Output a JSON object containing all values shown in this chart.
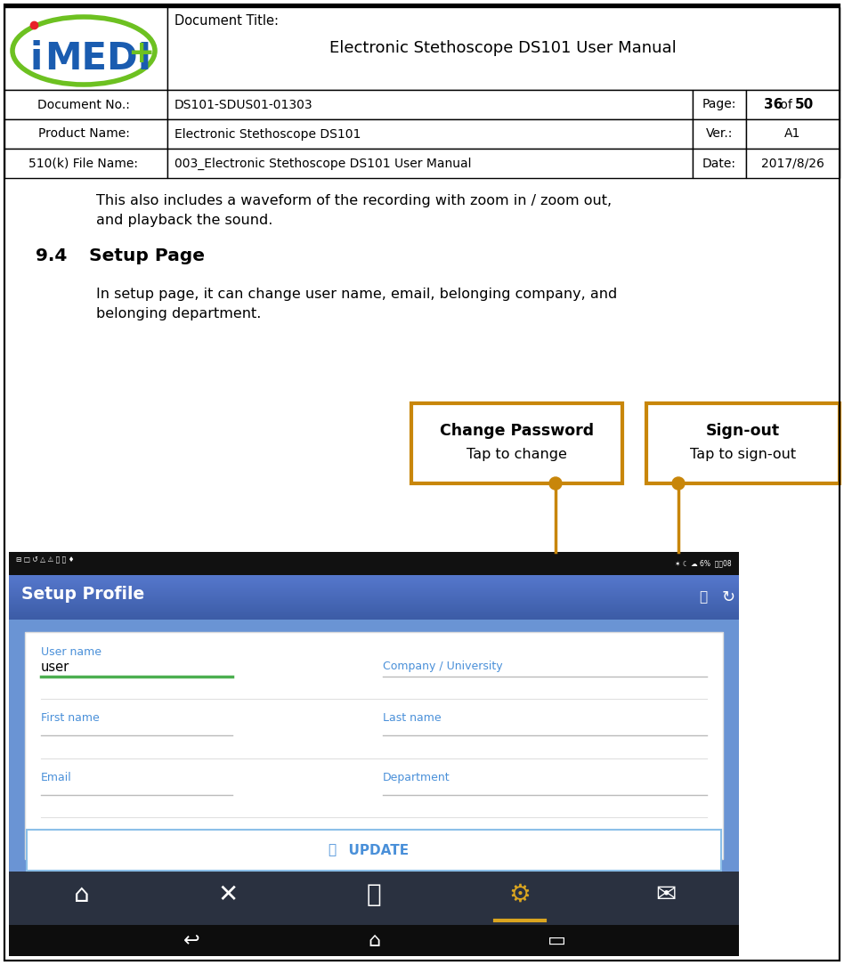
{
  "doc_title": "Document Title:",
  "doc_title_main": "Electronic Stethoscope DS101 User Manual",
  "doc_no_label": "Document No.:",
  "doc_no_value": "DS101-SDUS01-01303",
  "page_label": "Page:",
  "page_bold1": "36",
  "page_of": " of ",
  "page_bold2": "50",
  "product_label": "Product Name:",
  "product_value": "Electronic Stethoscope DS101",
  "ver_label": "Ver.:",
  "ver_value": "A1",
  "file_label": "510(k) File Name:",
  "file_value": "003_Electronic Stethoscope DS101 User Manual",
  "date_label": "Date:",
  "date_value": "2017/8/26",
  "body_text1": "This also includes a waveform of the recording with zoom in / zoom out,",
  "body_text2": "and playback the sound.",
  "section_num": "9.4",
  "section_title": "Setup Page",
  "section_body1": "In setup page, it can change user name, email, belonging company, and",
  "section_body2": "belonging department.",
  "callout1_title": "Change Password",
  "callout1_sub": "Tap to change",
  "callout2_title": "Sign-out",
  "callout2_sub": "Tap to sign-out",
  "orange_color": "#C8860A",
  "blue_header_top": "#4A72C4",
  "blue_header_bot": "#3B5BA5",
  "blue_light": "#4A90D9",
  "dark_nav": "#2A3140",
  "black_bar": "#111111",
  "green_underline": "#4CAF50",
  "white": "#FFFFFF",
  "field_line": "#BBBBBB",
  "logo_green": "#6DC121",
  "logo_blue": "#1A5CB0",
  "logo_red": "#E8202A",
  "yellow_accent": "#DAA520",
  "form_bg": "#6A94D4",
  "update_border": "#8BBFE8"
}
